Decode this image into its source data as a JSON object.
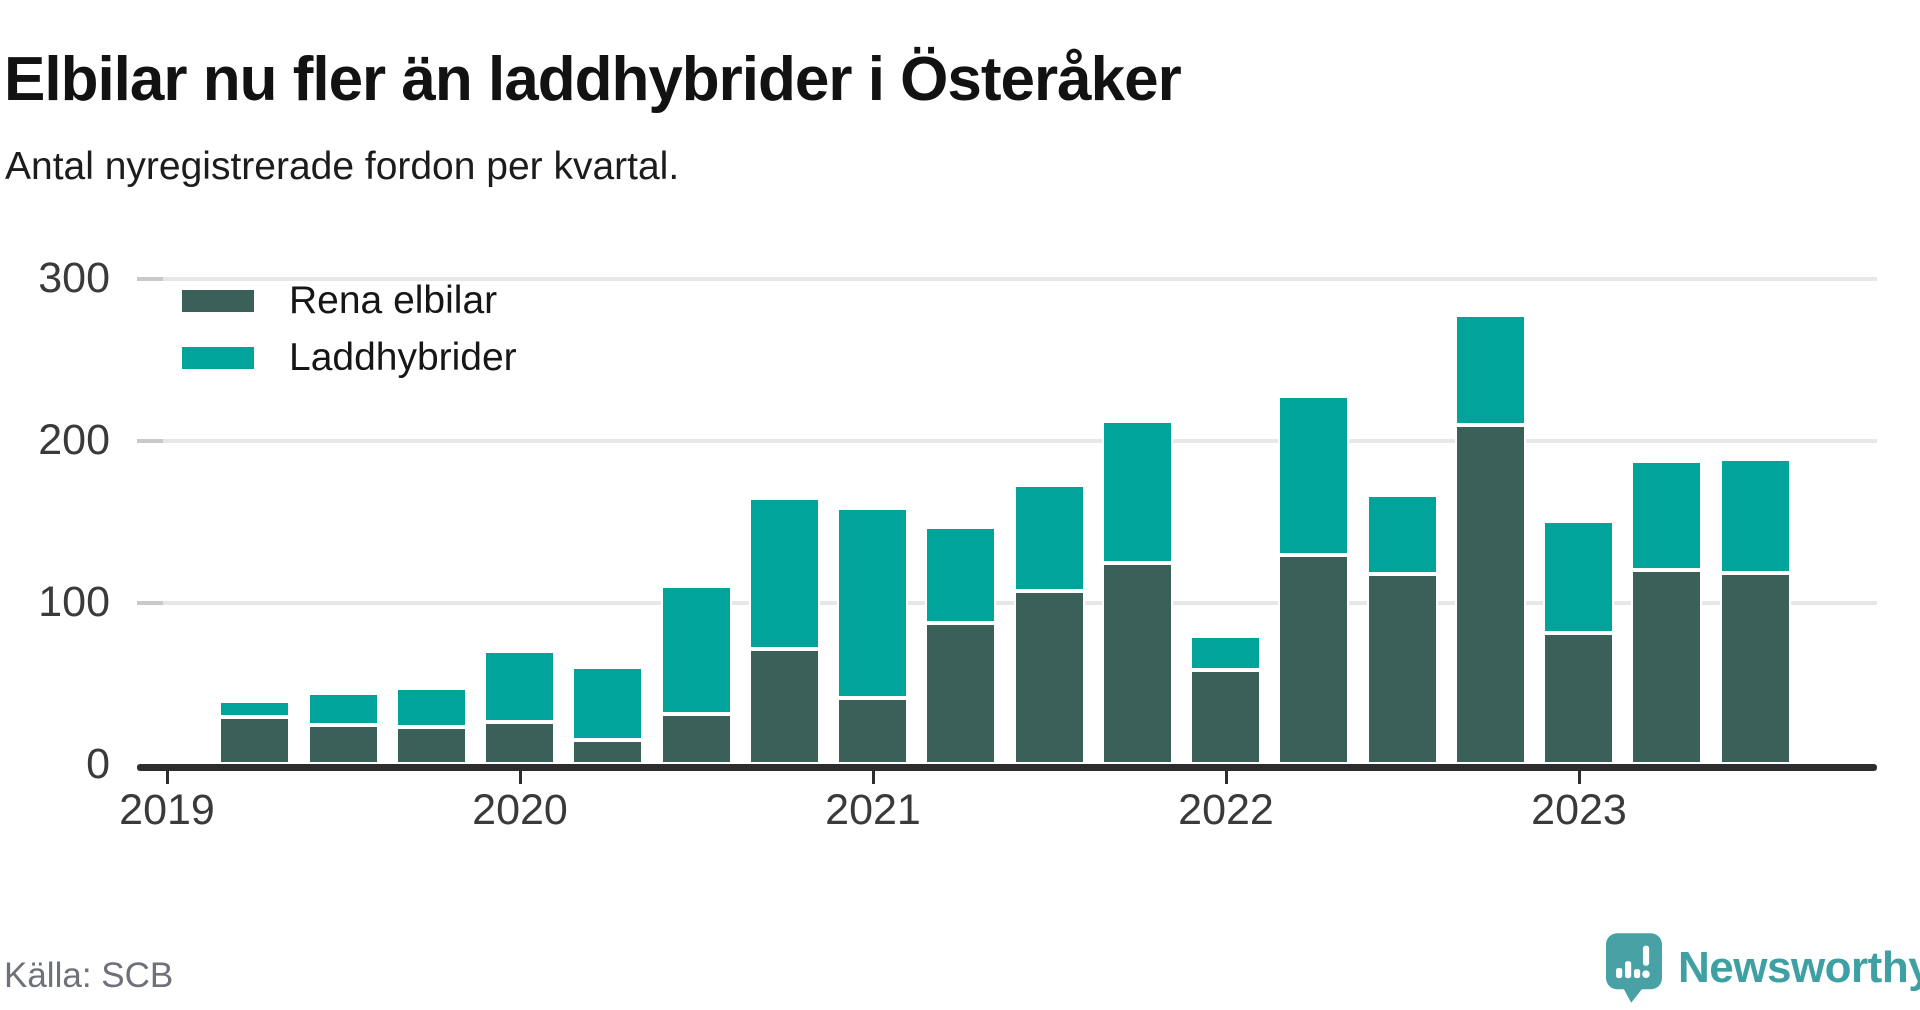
{
  "header": {
    "title": "Elbilar nu fler än laddhybrider i Österåker",
    "subtitle": "Antal nyregistrerade fordon per kvartal."
  },
  "legend": [
    {
      "label": "Rena elbilar",
      "color": "#3A6059"
    },
    {
      "label": "Laddhybrider",
      "color": "#00A49B"
    }
  ],
  "chart_data": {
    "type": "bar",
    "stacked": true,
    "title": "Elbilar nu fler än laddhybrider i Österåker",
    "subtitle": "Antal nyregistrerade fordon per kvartal.",
    "x": [
      "2019 Q2",
      "2019 Q3",
      "2019 Q4",
      "2020 Q1",
      "2020 Q2",
      "2020 Q3",
      "2020 Q4",
      "2021 Q1",
      "2021 Q2",
      "2021 Q3",
      "2021 Q4",
      "2022 Q1",
      "2022 Q2",
      "2022 Q3",
      "2022 Q4",
      "2023 Q1",
      "2023 Q2",
      "2023 Q3"
    ],
    "series": [
      {
        "name": "Rena elbilar",
        "color": "#3A6059",
        "values": [
          29,
          24,
          23,
          26,
          15,
          31,
          71,
          41,
          87,
          107,
          124,
          58,
          129,
          117,
          209,
          81,
          120,
          118
        ]
      },
      {
        "name": "Laddhybrider",
        "color": "#00A49B",
        "values": [
          10,
          20,
          24,
          44,
          45,
          79,
          93,
          117,
          59,
          65,
          88,
          21,
          98,
          49,
          68,
          69,
          67,
          70
        ]
      }
    ],
    "totals": [
      39,
      44,
      47,
      70,
      60,
      110,
      164,
      158,
      146,
      172,
      212,
      79,
      227,
      166,
      277,
      150,
      187,
      188
    ],
    "years": [
      "2019",
      "2020",
      "2021",
      "2022",
      "2023"
    ],
    "yticks": [
      0,
      100,
      200,
      300
    ],
    "ylim": [
      0,
      310
    ],
    "xlabel": "",
    "ylabel": "",
    "grid": "horizontal",
    "legend_position": "top-left"
  },
  "footer": {
    "source": "Källa: SCB",
    "brand": "Newsworthy"
  },
  "colors": {
    "elbilar": "#3A6059",
    "laddhybrider": "#00A49B",
    "axis": "#2d2d2d",
    "gridline": "#e7e7e7",
    "brand_teal": "#3fa0a3"
  }
}
